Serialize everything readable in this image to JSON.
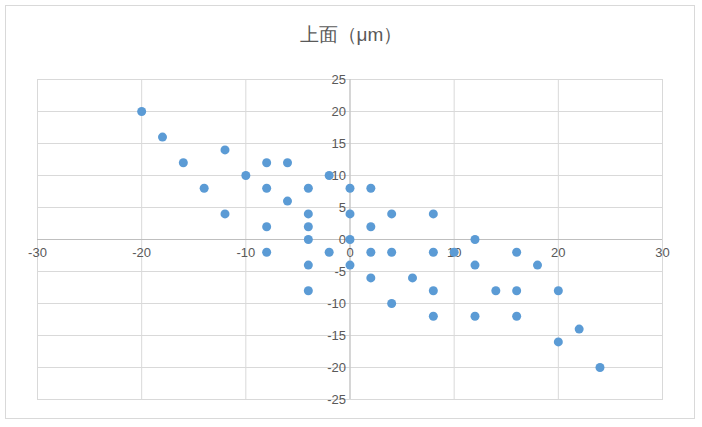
{
  "chart_data": {
    "type": "scatter",
    "title": "上面（μm）",
    "x": [
      -20,
      -18,
      -16,
      -12,
      -14,
      -12,
      -10,
      -8,
      -6,
      -8,
      -6,
      -8,
      -8,
      -4,
      -4,
      -4,
      -4,
      -4,
      -4,
      -2,
      -2,
      0,
      0,
      0,
      0,
      2,
      2,
      2,
      2,
      4,
      4,
      4,
      6,
      8,
      8,
      8,
      8,
      10,
      12,
      12,
      12,
      14,
      16,
      16,
      16,
      18,
      20,
      20,
      22,
      24
    ],
    "values": [
      20,
      16,
      12,
      14,
      8,
      4,
      10,
      12,
      12,
      8,
      6,
      2,
      -2,
      8,
      4,
      2,
      0,
      -4,
      -8,
      10,
      -2,
      8,
      4,
      0,
      -4,
      8,
      2,
      -2,
      -6,
      4,
      -2,
      -10,
      -6,
      4,
      -2,
      -8,
      -12,
      -2,
      0,
      -4,
      -12,
      -8,
      -2,
      -8,
      -12,
      -4,
      -8,
      -16,
      -14,
      -20
    ],
    "color": "#5b9bd5",
    "marker": "circle",
    "xlim": [
      -30,
      30
    ],
    "xticks": [
      -30,
      -20,
      -10,
      0,
      10,
      20,
      30
    ],
    "ylim": [
      -25,
      25
    ],
    "yticks": [
      -25,
      -20,
      -15,
      -10,
      -5,
      0,
      5,
      10,
      15,
      20,
      25
    ],
    "grid": true
  }
}
